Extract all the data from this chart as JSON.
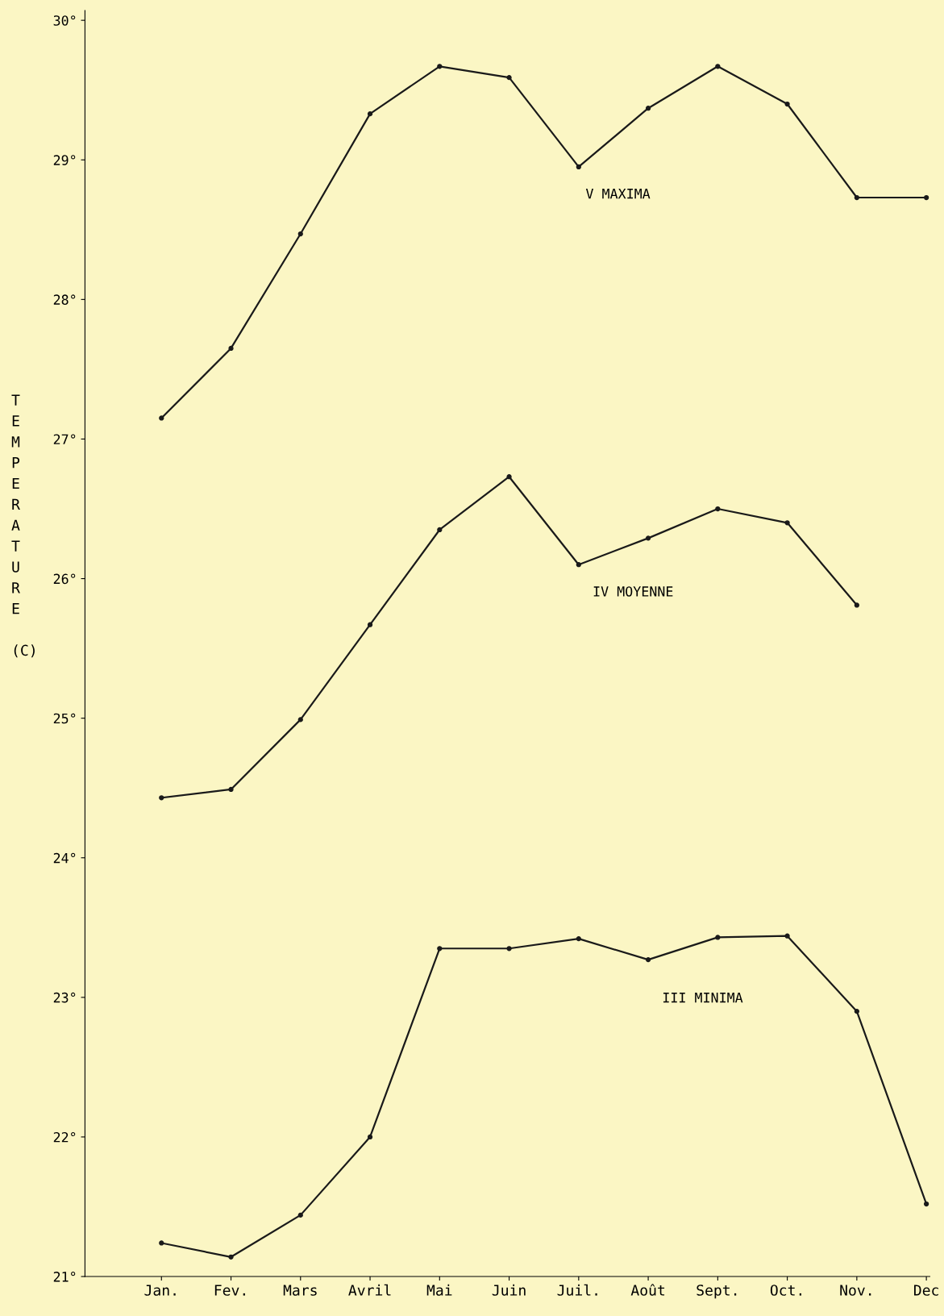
{
  "chart_data": {
    "type": "line",
    "ylabel": "TEMPERATURE (C)",
    "categories": [
      "Jan.",
      "Fev.",
      "Mars",
      "Avril",
      "Mai",
      "Juin",
      "Juil.",
      "Août",
      "Sept.",
      "Oct.",
      "Nov.",
      "Dec"
    ],
    "series": [
      {
        "name": "V MAXIMA",
        "color": "#1a1a1a",
        "values": [
          27.15,
          27.65,
          28.47,
          29.33,
          29.67,
          29.59,
          28.95,
          29.37,
          29.67,
          29.4,
          28.73,
          28.73
        ]
      },
      {
        "name": "IV MOYENNE",
        "color": "#1a1a1a",
        "values": [
          24.43,
          24.49,
          24.99,
          25.67,
          26.35,
          26.73,
          26.1,
          26.29,
          26.5,
          26.4,
          25.81,
          null
        ]
      },
      {
        "name": "III MINIMA",
        "color": "#1a1a1a",
        "values": [
          21.24,
          21.14,
          21.44,
          22.0,
          23.35,
          23.35,
          23.42,
          23.27,
          23.43,
          23.44,
          22.9,
          21.52
        ]
      }
    ],
    "ylim": [
      21,
      30.07
    ],
    "yticks": [
      {
        "value": 21,
        "label": "21°"
      },
      {
        "value": 22,
        "label": "22°"
      },
      {
        "value": 23,
        "label": "23°"
      },
      {
        "value": 24,
        "label": "24°"
      },
      {
        "value": 25,
        "label": "25°"
      },
      {
        "value": 26,
        "label": "26°"
      },
      {
        "value": 27,
        "label": "27°"
      },
      {
        "value": 28,
        "label": "28°"
      },
      {
        "value": 29,
        "label": "29°"
      },
      {
        "value": 30,
        "label": "30°"
      }
    ],
    "grid": false,
    "legend": false,
    "marker": "circle",
    "line_style": "solid"
  }
}
